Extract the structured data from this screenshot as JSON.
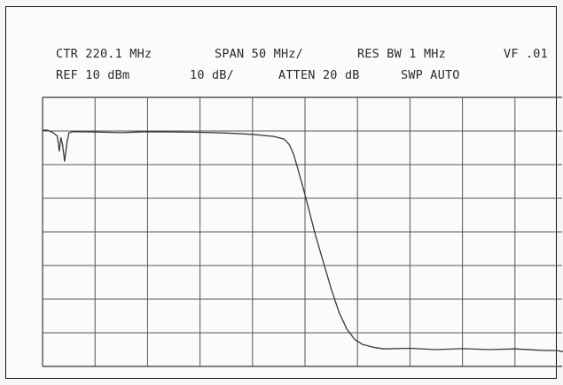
{
  "header": {
    "ctr": "CTR 220.1 MHz",
    "span": "SPAN 50 MHz/",
    "res_bw": "RES BW 1 MHz",
    "vf": "VF .01",
    "ref": "REF 10 dBm",
    "scale": "10 dB/",
    "atten": "ATTEN 20 dB",
    "swp": "SWP AUTO"
  },
  "colors": {
    "grid": "#555555",
    "trace": "#3a3a3a",
    "border": "#111111"
  },
  "chart_data": {
    "type": "line",
    "grid": true,
    "xlim": [
      -5,
      5
    ],
    "ylim": [
      -70,
      10
    ],
    "x_divisions": 10,
    "y_divisions": 8,
    "series": [
      {
        "x": [
          -5,
          -4.9,
          -4.8,
          -4.72,
          -4.68,
          -4.65,
          -4.62,
          -4.58,
          -4.54,
          -4.5,
          -4.45,
          -4.4,
          -4.3,
          -4.0,
          -3.5,
          -3.0,
          -2.5,
          -2.0,
          -1.5,
          -1.0,
          -0.6,
          -0.4,
          -0.3,
          -0.22,
          -0.15,
          -0.05,
          0.05,
          0.2,
          0.35,
          0.5,
          0.65,
          0.8,
          0.95,
          1.1,
          1.3,
          1.5,
          2.0,
          2.5,
          3.0,
          3.5,
          4.0,
          4.5,
          4.8,
          5.0
        ],
        "y": [
          0.3,
          0.2,
          -0.5,
          -1.5,
          -6,
          -2,
          -4,
          -9,
          -4,
          -0.6,
          -0.3,
          -0.2,
          -0.2,
          -0.3,
          -0.5,
          -0.2,
          -0.3,
          -0.4,
          -0.6,
          -1.0,
          -1.6,
          -2.4,
          -4.0,
          -6.8,
          -10.5,
          -16,
          -22,
          -31,
          -39,
          -47,
          -54,
          -59,
          -62,
          -63.5,
          -64.3,
          -64.8,
          -64.6,
          -65.0,
          -64.7,
          -65.0,
          -64.8,
          -65.2,
          -65.3,
          -65.8
        ]
      }
    ]
  }
}
